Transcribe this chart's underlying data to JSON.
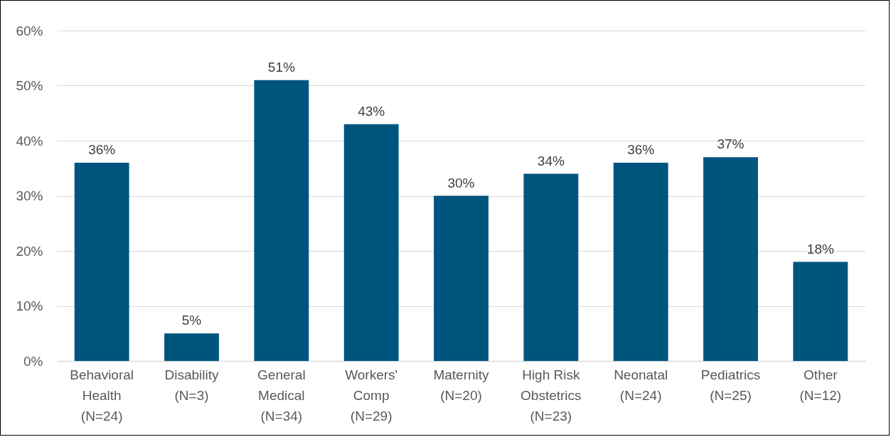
{
  "chart_data": {
    "type": "bar",
    "categories": [
      "Behavioral Health (N=24)",
      "Disability (N=3)",
      "General Medical (N=34)",
      "Workers' Comp (N=29)",
      "Maternity (N=20)",
      "High Risk Obstetrics (N=23)",
      "Neonatal (N=24)",
      "Pediatrics (N=25)",
      "Other (N=12)"
    ],
    "values": [
      36,
      5,
      51,
      43,
      30,
      34,
      36,
      37,
      18
    ],
    "value_labels": [
      "36%",
      "5%",
      "51%",
      "43%",
      "30%",
      "34%",
      "36%",
      "37%",
      "18%"
    ],
    "color": "#00557f",
    "ylim": [
      0,
      60
    ],
    "yticks": [
      {
        "value": 0,
        "label": "0%"
      },
      {
        "value": 10,
        "label": "10%"
      },
      {
        "value": 20,
        "label": "20%"
      },
      {
        "value": 30,
        "label": "30%"
      },
      {
        "value": 40,
        "label": "40%"
      },
      {
        "value": 50,
        "label": "50%"
      },
      {
        "value": 60,
        "label": "60%"
      }
    ],
    "grid": "y"
  }
}
